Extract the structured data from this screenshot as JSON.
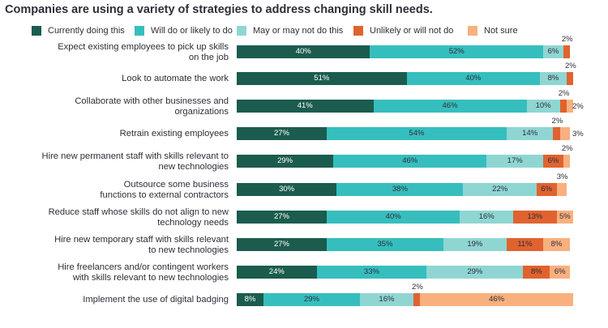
{
  "title": "Companies are using a variety of strategies to address changing skill needs.",
  "chart_data": {
    "type": "bar",
    "orientation": "horizontal",
    "stacked": true,
    "title": "Companies are using a variety of strategies to address changing skill needs.",
    "unit": "%",
    "xlim": [
      0,
      100
    ],
    "legend_position": "top",
    "categories": [
      [
        "Expect existing employees to pick up skills",
        "on the job"
      ],
      [
        "Look to automate the work"
      ],
      [
        "Collaborate with other businesses and",
        "organizations"
      ],
      [
        "Retrain existing employees"
      ],
      [
        "Hire new permanent staff with skills relevant to",
        "new technologies"
      ],
      [
        "Outsource some business",
        "functions to external contractors"
      ],
      [
        "Reduce staff whose skills do not align to new",
        "technology needs"
      ],
      [
        "Hire new temporary staff with skills relevant",
        "to new technologies"
      ],
      [
        "Hire freelancers and/or contingent workers",
        "with skills relevant to new technologies"
      ],
      [
        "Implement the use of digital badging"
      ]
    ],
    "series": [
      {
        "name": "Currently doing this",
        "color": "#1b5c4e",
        "values": [
          40,
          51,
          41,
          27,
          29,
          30,
          27,
          27,
          24,
          8
        ]
      },
      {
        "name": "Will do or likely to do",
        "color": "#36bebe",
        "values": [
          52,
          40,
          46,
          54,
          46,
          38,
          40,
          35,
          33,
          29
        ]
      },
      {
        "name": "May or may not do this",
        "color": "#8fd6d3",
        "values": [
          6,
          8,
          10,
          14,
          17,
          22,
          16,
          19,
          29,
          16
        ]
      },
      {
        "name": "Unlikely or will not do",
        "color": "#e0632f",
        "values": [
          2,
          2,
          2,
          2,
          6,
          6,
          13,
          11,
          8,
          2
        ]
      },
      {
        "name": "Not sure",
        "color": "#f8b07e",
        "values": [
          0,
          0,
          2,
          3,
          2,
          3,
          5,
          8,
          6,
          46
        ]
      }
    ]
  }
}
